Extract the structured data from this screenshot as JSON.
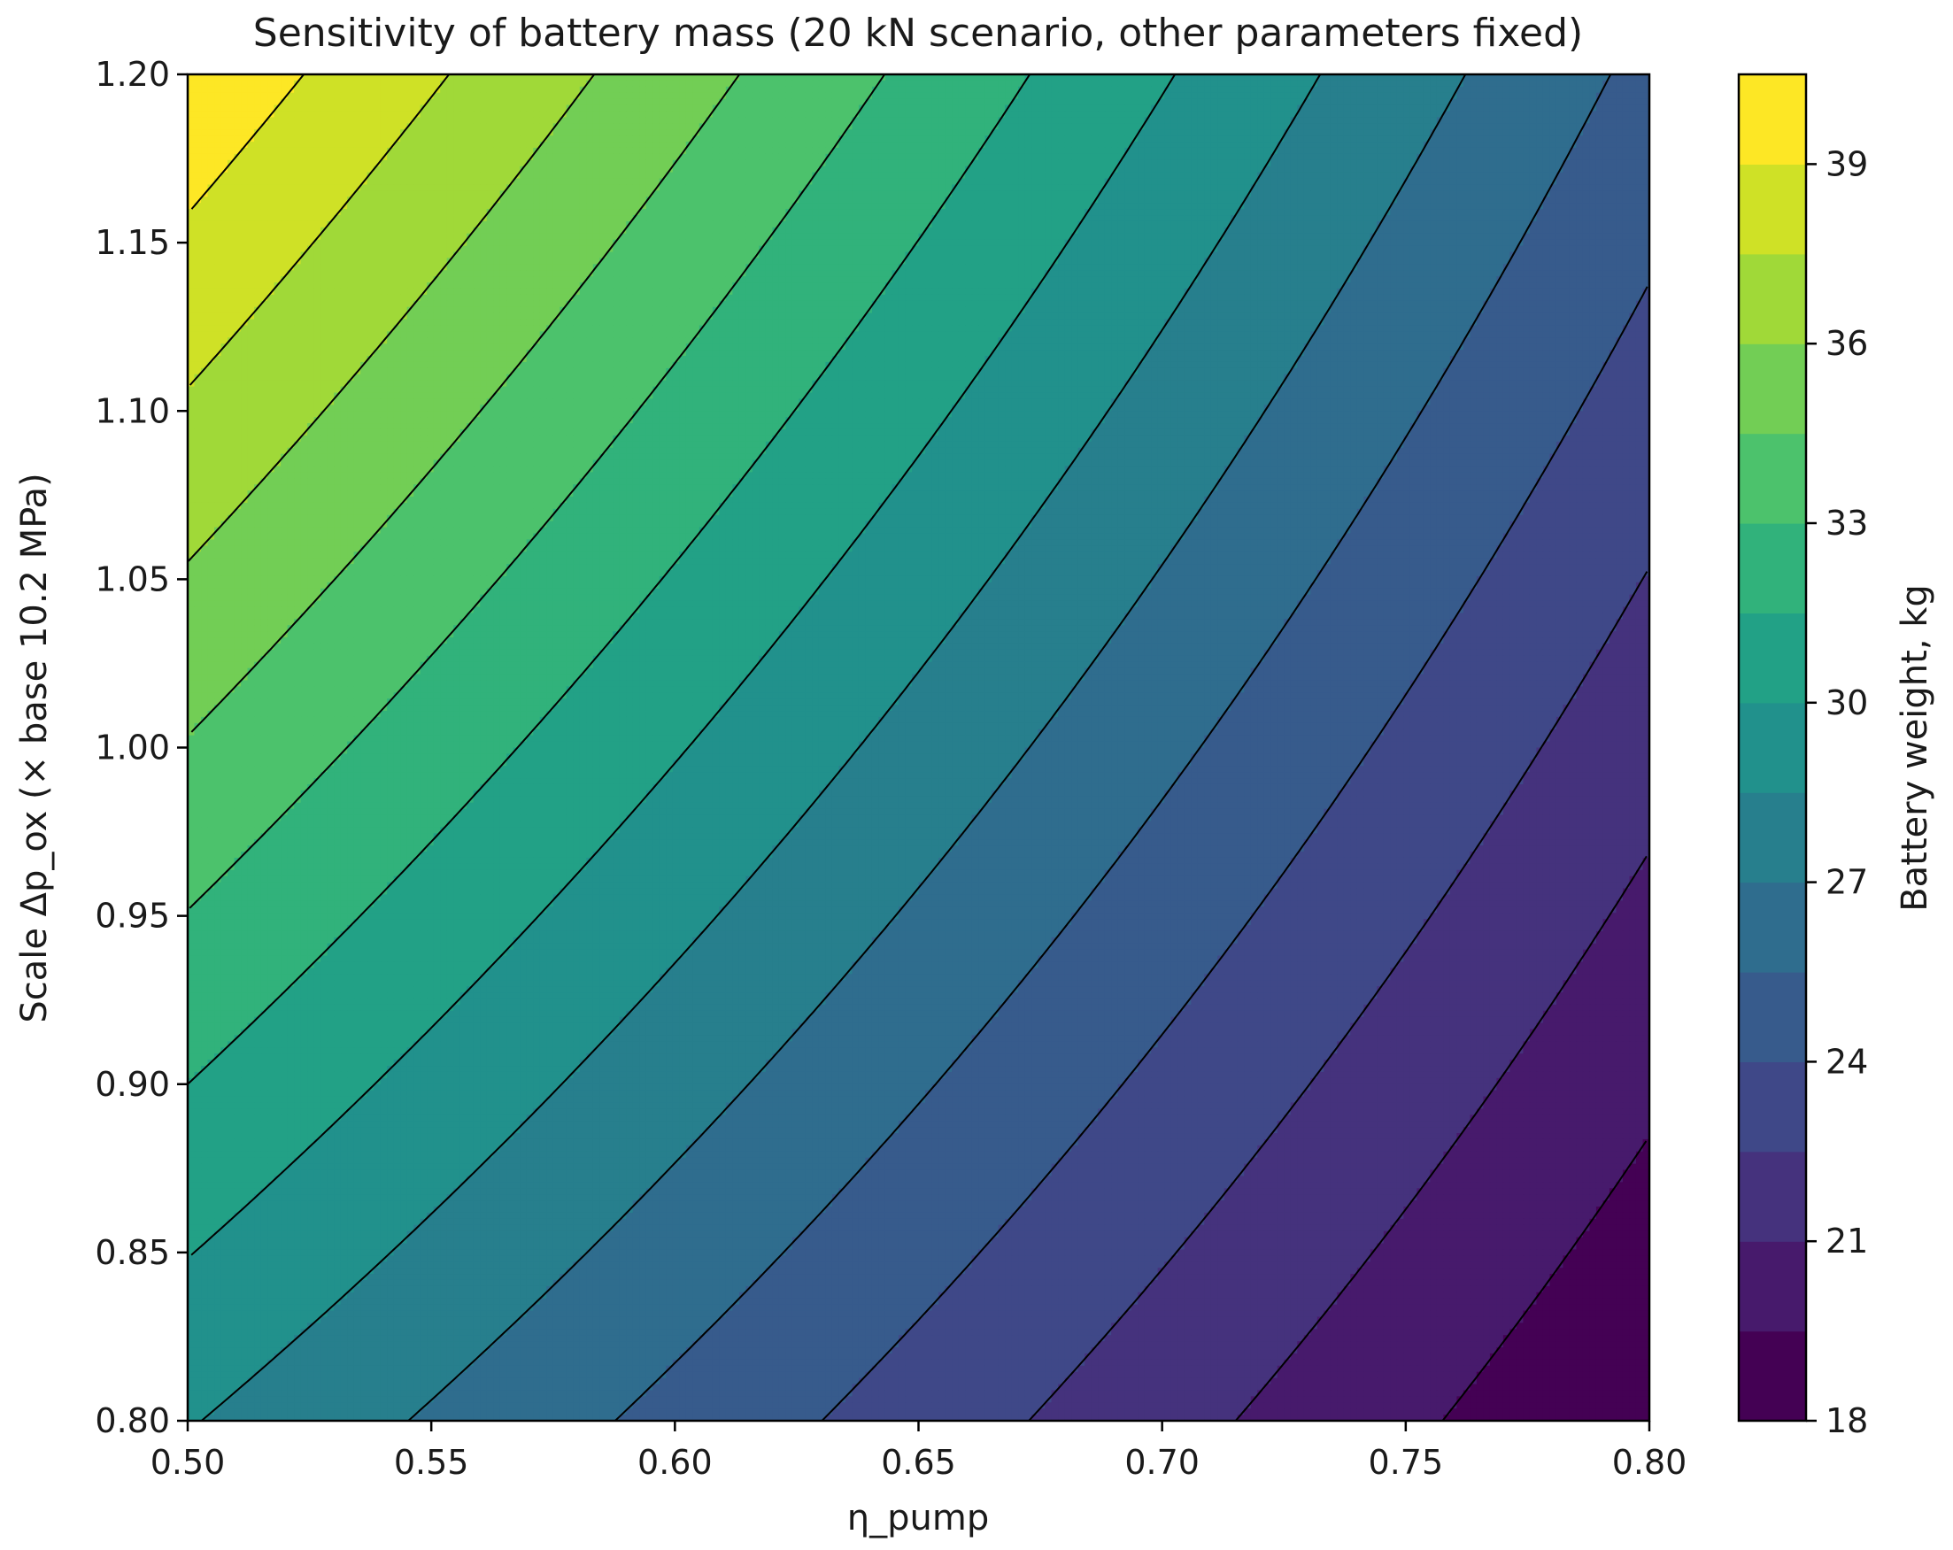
{
  "chart_data": {
    "type": "heatmap",
    "subtype": "filled-contour",
    "title": "Sensitivity of battery mass (20 kN scenario, other parameters fixed)",
    "xlabel": "η_pump",
    "ylabel": "Scale Δp_ox (× base 10.2 MPa)",
    "xlim": [
      0.5,
      0.8
    ],
    "ylim": [
      0.8,
      1.2
    ],
    "xticks": [
      0.5,
      0.55,
      0.6,
      0.65,
      0.7,
      0.75,
      0.8
    ],
    "xtick_labels": [
      "0.50",
      "0.55",
      "0.60",
      "0.65",
      "0.70",
      "0.75",
      "0.80"
    ],
    "yticks": [
      0.8,
      0.85,
      0.9,
      0.95,
      1.0,
      1.05,
      1.1,
      1.15,
      1.2
    ],
    "ytick_labels": [
      "0.80",
      "0.85",
      "0.90",
      "0.95",
      "1.00",
      "1.05",
      "1.10",
      "1.15",
      "1.20"
    ],
    "colorbar": {
      "label": "Battery weight, kg",
      "range": [
        18,
        40.5
      ],
      "level_step": 1.5,
      "ticks": [
        18,
        21,
        24,
        27,
        30,
        33,
        36,
        39
      ],
      "tick_labels": [
        "18",
        "21",
        "24",
        "27",
        "30",
        "33",
        "36",
        "39"
      ],
      "colormap": "viridis"
    },
    "contour_lines": {
      "levels": [
        19.5,
        21,
        22.5,
        24,
        25.5,
        27,
        28.5,
        30,
        31.5,
        33,
        34.5,
        36,
        37.5,
        39
      ],
      "color": "#000000"
    },
    "model": {
      "description": "Battery weight sampled at grid corners",
      "corners": [
        {
          "x": 0.5,
          "y": 0.8,
          "value": 28.6
        },
        {
          "x": 0.8,
          "y": 0.8,
          "value": 18.0
        },
        {
          "x": 0.5,
          "y": 1.2,
          "value": 40.2
        },
        {
          "x": 0.8,
          "y": 1.2,
          "value": 25.1
        }
      ]
    }
  }
}
